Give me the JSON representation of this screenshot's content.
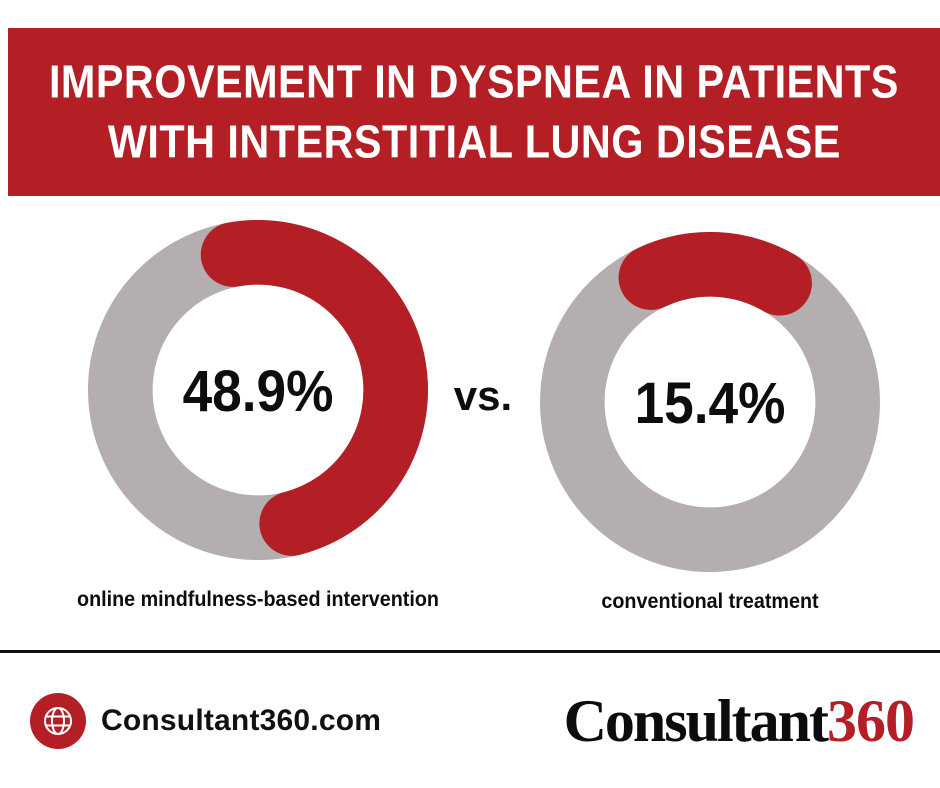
{
  "colors": {
    "red": "#b31f25",
    "gray": "#b4aeb1",
    "ink": "#151515",
    "paper": "#ffffff"
  },
  "header": {
    "title_line1": "IMPROVEMENT IN DYSPNEA IN PATIENTS",
    "title_line2": "WITH INTERSTITIAL LUNG DISEASE"
  },
  "chart_data": {
    "type": "pie",
    "subtype": "donut-comparison",
    "title": "IMPROVEMENT IN DYSPNEA IN PATIENTS WITH INTERSTITIAL LUNG DISEASE",
    "comparator": "vs.",
    "colors": {
      "filled": "#b31f25",
      "track": "#b4aeb1"
    },
    "charts": [
      {
        "label": "online mindfulness-based intervention",
        "value": 48.9,
        "display": "48.9%",
        "start_deg": -10
      },
      {
        "label": "conventional treatment",
        "value": 15.4,
        "display": "15.4%",
        "start_deg": -25
      }
    ]
  },
  "footer": {
    "website": "Consultant360.com",
    "logo_text": "Consultant",
    "logo_number": "360"
  }
}
